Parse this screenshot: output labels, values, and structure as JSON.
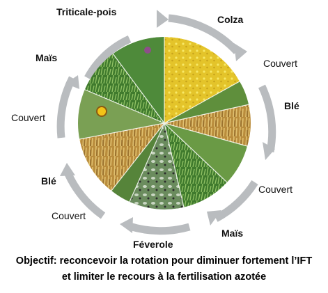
{
  "rotation": {
    "stages": [
      {
        "label": "Triticale-pois",
        "bold": true,
        "icon": "triticale-pea-crop-photo"
      },
      {
        "label": "Colza",
        "bold": true,
        "icon": "rapeseed-crop-photo"
      },
      {
        "label": "Couvert",
        "bold": false,
        "icon": "cover-crop-photo"
      },
      {
        "label": "Blé",
        "bold": true,
        "icon": "wheat-crop-photo"
      },
      {
        "label": "Couvert",
        "bold": false,
        "icon": "cover-crop-photo"
      },
      {
        "label": "Maïs",
        "bold": true,
        "icon": "maize-crop-photo"
      },
      {
        "label": "Féverole",
        "bold": true,
        "icon": "faba-bean-crop-photo"
      },
      {
        "label": "Couvert",
        "bold": false,
        "icon": "cover-crop-photo"
      },
      {
        "label": "Blé",
        "bold": true,
        "icon": "wheat-crop-photo"
      },
      {
        "label": "Couvert",
        "bold": false,
        "icon": "cover-crop-photo"
      },
      {
        "label": "Maïs",
        "bold": true,
        "icon": "maize-crop-photo"
      }
    ],
    "arrow_color": "#b9bcbf"
  },
  "caption": {
    "line1": "Objectif: reconcevoir la rotation pour diminuer fortement l’IFT",
    "line2": "et limiter le recours à la fertilisation azotée"
  }
}
